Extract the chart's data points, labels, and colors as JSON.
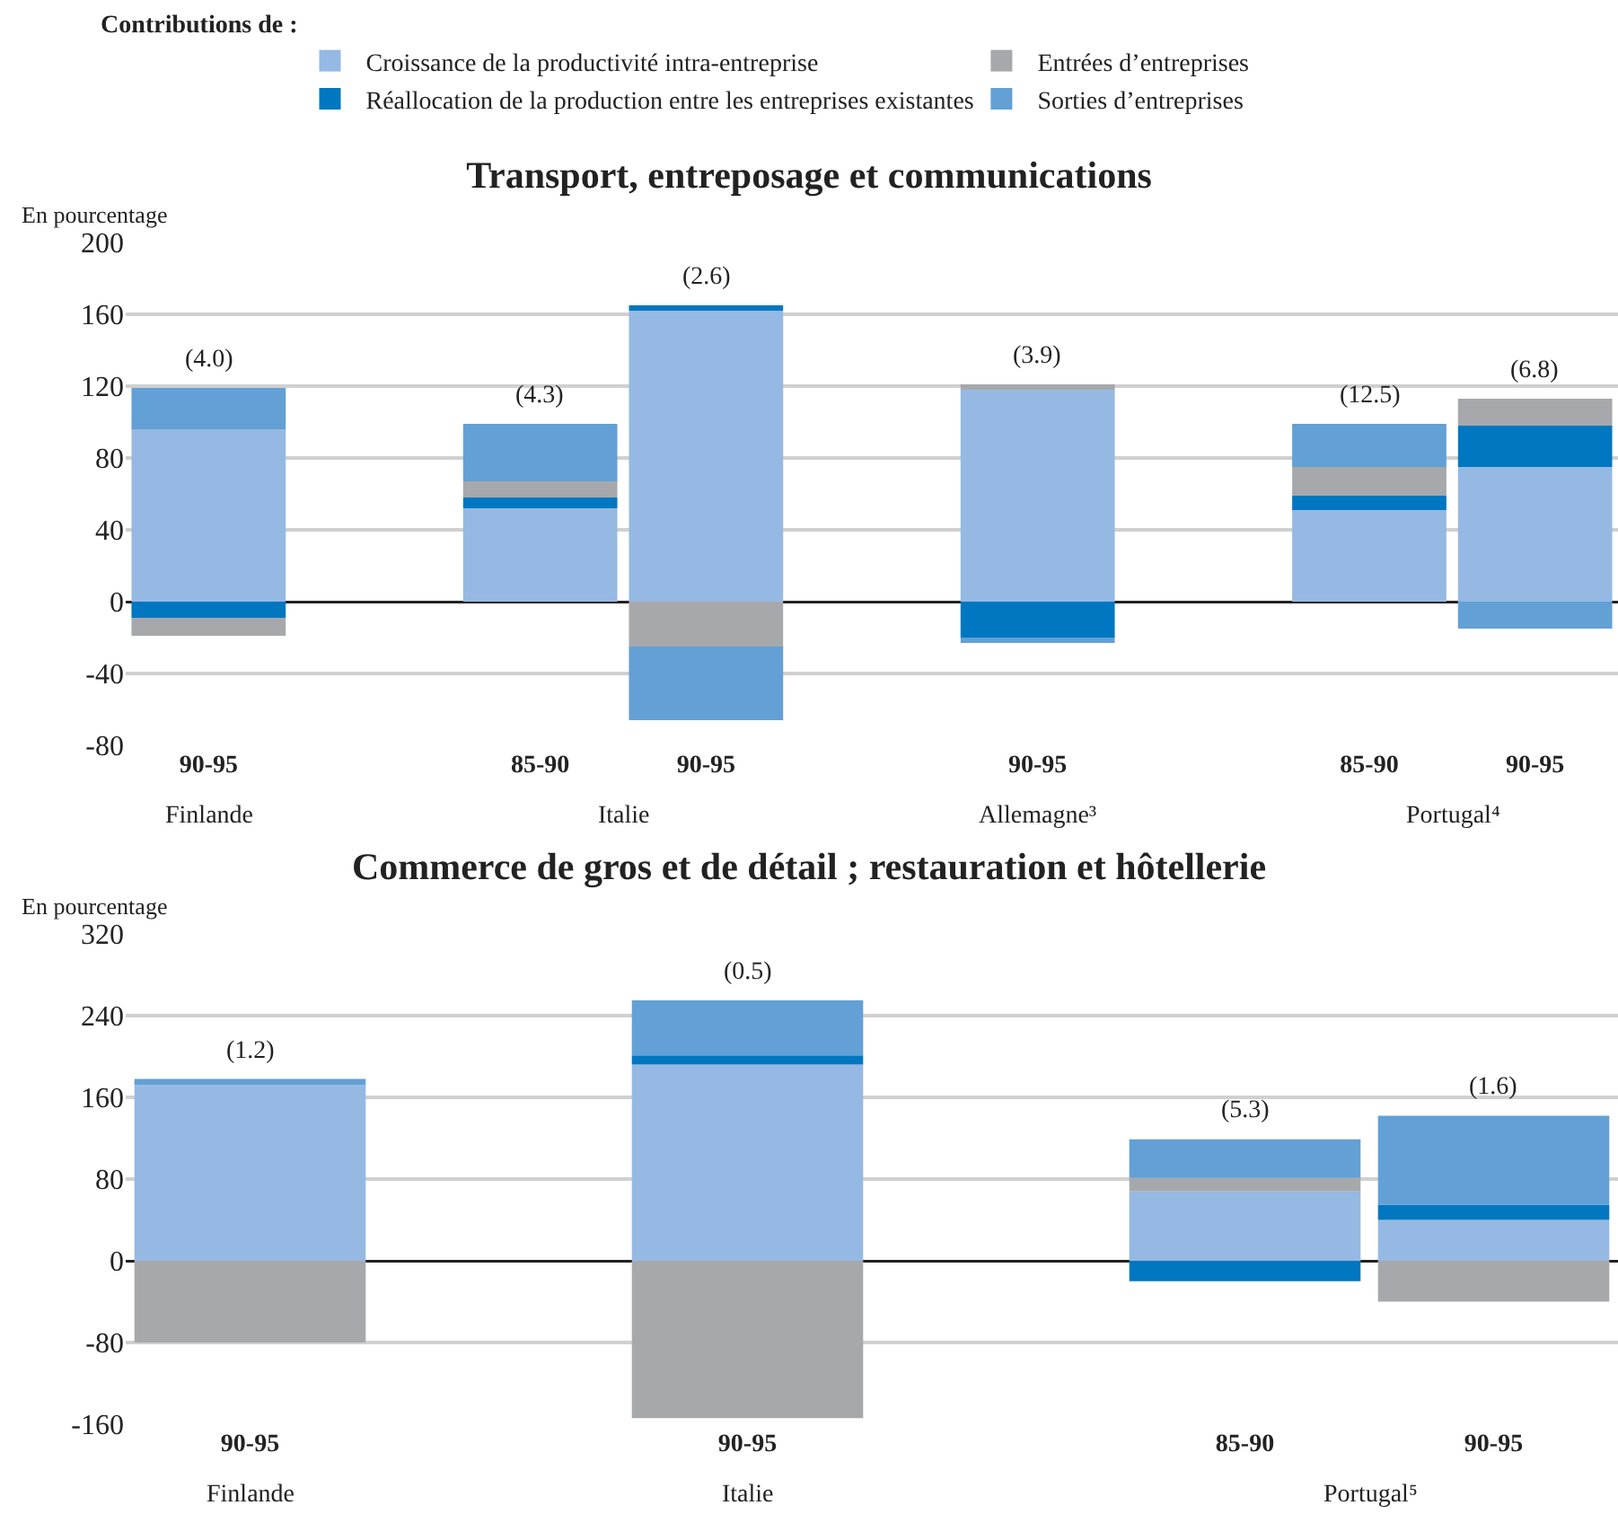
{
  "chart_data": [
    {
      "type": "bar",
      "title": "Transport, entreposage et communications",
      "ylabel": "En pourcentage",
      "legend_title": "Contributions de :",
      "legend": "top",
      "stacked": true,
      "grid": "y",
      "categories": [
        "90-95",
        null,
        "85-90",
        "90-95",
        null,
        "90-95",
        null,
        "85-90",
        "90-95"
      ],
      "annotations": [
        "Finlande",
        "Italie",
        "Allemagne³",
        "Portugal⁴",
        "(4.0)",
        "(4.3)",
        "(2.6)",
        "(3.9)",
        "(12.5)",
        "(6.8)"
      ],
      "ylim": [
        -80,
        200
      ],
      "yticks": [
        -80,
        -40,
        0,
        40,
        80,
        120,
        160,
        200
      ],
      "series": [
        {
          "name": "Croissance de la productivité intra-entreprise",
          "color": "#95b9e2",
          "values": [
            96,
            null,
            52,
            162,
            null,
            118,
            null,
            51,
            75
          ]
        },
        {
          "name": "Réallocation de la production entre les entreprises existantes",
          "color": "#0077c0",
          "values": [
            -9,
            null,
            6,
            3,
            null,
            -20,
            null,
            8,
            23
          ]
        },
        {
          "name": "Entrées d’entreprises",
          "color": "#a7a8ab",
          "values": [
            -10,
            null,
            9,
            -25,
            null,
            3,
            null,
            16,
            15
          ]
        },
        {
          "name": "Sorties d’entreprises",
          "color": "#63a0d5",
          "values": [
            23,
            null,
            32,
            -41,
            null,
            -3,
            null,
            24,
            -15
          ]
        }
      ]
    },
    {
      "type": "bar",
      "title": "Commerce de gros et de détail ; restauration et hôtellerie",
      "ylabel": "En pourcentage",
      "stacked": true,
      "grid": "y",
      "categories": [
        "90-95",
        null,
        "90-95",
        null,
        "85-90",
        "90-95"
      ],
      "annotations": [
        "Finlande",
        "Italie",
        "Portugal⁵",
        "(1.2)",
        "(0.5)",
        "(5.3)",
        "(1.6)"
      ],
      "ylim": [
        -160,
        320
      ],
      "yticks": [
        -160,
        -80,
        0,
        80,
        160,
        240,
        320
      ],
      "series": [
        {
          "color": "#95b9e2",
          "values": [
            172,
            null,
            192,
            null,
            68,
            40
          ]
        },
        {
          "color": "#0077c0",
          "values": [
            null,
            null,
            9,
            null,
            -20,
            15
          ]
        },
        {
          "color": "#a7a8ab",
          "values": [
            -80,
            null,
            -154,
            null,
            13,
            -40
          ]
        },
        {
          "color": "#63a0d5",
          "values": [
            6,
            null,
            54,
            null,
            38,
            87
          ]
        }
      ]
    }
  ]
}
